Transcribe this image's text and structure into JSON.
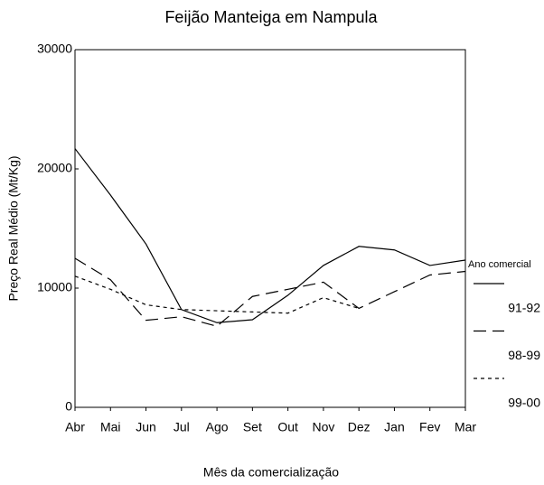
{
  "chart_data": {
    "type": "line",
    "title": "Feijão Manteiga em Nampula",
    "x_label": "Mês da comercialização",
    "y_label": "Preço Real Médio (Mt/Kg)",
    "categories": [
      "Abr",
      "Mai",
      "Jun",
      "Jul",
      "Ago",
      "Set",
      "Out",
      "Nov",
      "Dez",
      "Jan",
      "Fev",
      "Mar"
    ],
    "series": [
      {
        "name": "91-92",
        "color": "#000000",
        "dash": "none",
        "values": [
          21700,
          17800,
          13700,
          8200,
          7100,
          7350,
          9400,
          11900,
          13500,
          13200,
          11900,
          12350
        ]
      },
      {
        "name": "98-99",
        "color": "#000000",
        "dash": "14,7",
        "values": [
          12500,
          10700,
          7300,
          7600,
          6800,
          9300,
          9900,
          10500,
          8300,
          9700,
          11100,
          11400
        ]
      },
      {
        "name": "99-00",
        "color": "#000000",
        "dash": "4,4",
        "values": [
          11000,
          9900,
          8600,
          8200,
          8100,
          8000,
          7900,
          9200,
          8300,
          null,
          null,
          null
        ]
      }
    ],
    "legend_title": "Ano comercial",
    "legend": "right",
    "ylim": [
      0,
      30000
    ],
    "yticks": [
      0,
      10000,
      20000,
      30000
    ],
    "grid": false
  }
}
